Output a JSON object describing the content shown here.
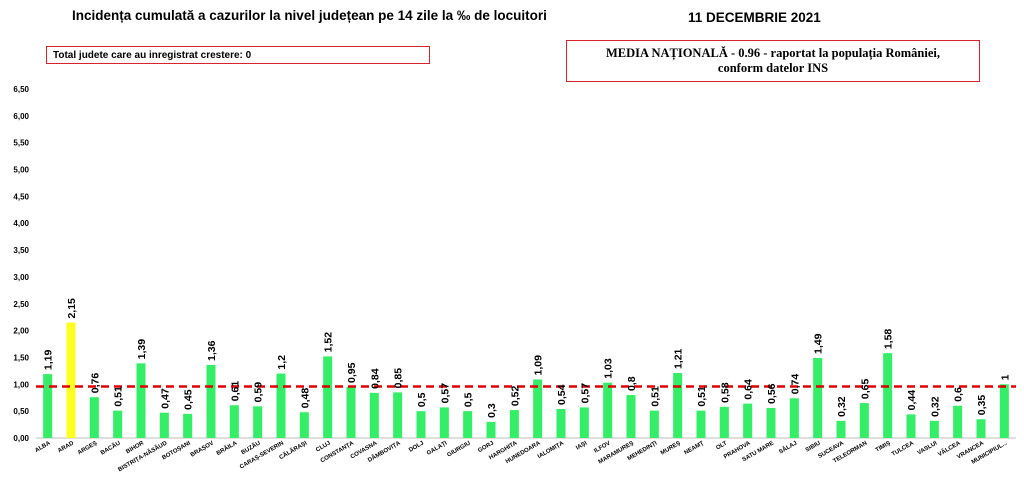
{
  "header": {
    "title": "Incidența cumulată a cazurilor la nivel județean pe 14 zile la ‰ de locuitori",
    "date": "11 DECEMBRIE 2021"
  },
  "note": "Total judete care au inregistrat crestere: 0",
  "national": {
    "line1": "MEDIA NAȚIONALĂ - 0.96 -  raportat la populația României,",
    "line2": "conform datelor INS"
  },
  "colors": {
    "bar": "#33ee66",
    "highlight": "#ffff22",
    "reference_line": "#dd0000",
    "box_border": "#d9232a"
  },
  "chart_data": {
    "type": "bar",
    "categories": [
      "ALBA",
      "ARAD",
      "ARGEȘ",
      "BACĂU",
      "BIHOR",
      "BISTRIȚA-NĂSĂUD",
      "BOTOȘANI",
      "BRAȘOV",
      "BRĂILA",
      "BUZĂU",
      "CARAȘ-SEVERIN",
      "CĂLĂRAȘI",
      "CLUJ",
      "CONSTANȚA",
      "COVASNA",
      "DÂMBOVIȚA",
      "DOLJ",
      "GALAȚI",
      "GIURGIU",
      "GORJ",
      "HARGHITA",
      "HUNEDOARA",
      "IALOMIȚA",
      "IAȘI",
      "ILFOV",
      "MARAMUREȘ",
      "MEHEDINȚI",
      "MUREȘ",
      "NEAMȚ",
      "OLT",
      "PRAHOVA",
      "SATU MARE",
      "SĂLAJ",
      "SIBIU",
      "SUCEAVA",
      "TELEORMAN",
      "TIMIȘ",
      "TULCEA",
      "VASLUI",
      "VÂLCEA",
      "VRANCEA",
      "MUNICIPIUL BUCUREȘTI"
    ],
    "values": [
      1.19,
      2.15,
      0.76,
      0.51,
      1.39,
      0.47,
      0.45,
      1.36,
      0.61,
      0.59,
      1.2,
      0.48,
      1.52,
      0.95,
      0.84,
      0.85,
      0.5,
      0.57,
      0.5,
      0.3,
      0.52,
      1.09,
      0.54,
      0.57,
      1.03,
      0.8,
      0.51,
      1.21,
      0.51,
      0.58,
      0.64,
      0.56,
      0.74,
      1.49,
      0.32,
      0.65,
      1.58,
      0.44,
      0.32,
      0.6,
      0.35,
      1
    ],
    "value_labels": [
      "1,19",
      "2,15",
      "0,76",
      "0,51",
      "1,39",
      "0,47",
      "0,45",
      "1,36",
      "0,61",
      "0,59",
      "1,2",
      "0,48",
      "1,52",
      "0,95",
      "0,84",
      "0,85",
      "0,5",
      "0,57",
      "0,5",
      "0,3",
      "0,52",
      "1,09",
      "0,54",
      "0,57",
      "1,03",
      "0,8",
      "0,51",
      "1,21",
      "0,51",
      "0,58",
      "0,64",
      "0,56",
      "0,74",
      "1,49",
      "0,32",
      "0,65",
      "1,58",
      "0,44",
      "0,32",
      "0,6",
      "0,35",
      "1"
    ],
    "category_labels": [
      "ALBA",
      "ARAD",
      "ARGEȘ",
      "BACĂU",
      "BIHOR",
      "BISTRIȚA-NĂSĂUD",
      "BOTOȘANI",
      "BRAȘOV",
      "BRĂILA",
      "BUZĂU",
      "CARAȘ-SEVERIN",
      "CĂLĂRAȘI",
      "CLUJ",
      "CONSTANȚA",
      "COVASNA",
      "DÂMBOVIȚA",
      "DOLJ",
      "GALAȚI",
      "GIURGIU",
      "GORJ",
      "HARGHITA",
      "HUNEDOARA",
      "IALOMIȚA",
      "IAȘI",
      "ILFOV",
      "MARAMUREȘ",
      "MEHEDINȚI",
      "MUREȘ",
      "NEAMȚ",
      "OLT",
      "PRAHOVA",
      "SATU MARE",
      "SĂLAJ",
      "SIBIU",
      "SUCEAVA",
      "TELEORMAN",
      "TIMIȘ",
      "TULCEA",
      "VASLUI",
      "VÂLCEA",
      "VRANCEA",
      "MUNICIPIUL..."
    ],
    "highlight_index": 1,
    "ylim": [
      0,
      6.5
    ],
    "yticks": [
      "0,00",
      "0,50",
      "1,00",
      "1,50",
      "2,00",
      "2,50",
      "3,00",
      "3,50",
      "4,00",
      "4,50",
      "5,00",
      "5,50",
      "6,00",
      "6,50"
    ],
    "reference_value": 0.96,
    "grid": false
  }
}
